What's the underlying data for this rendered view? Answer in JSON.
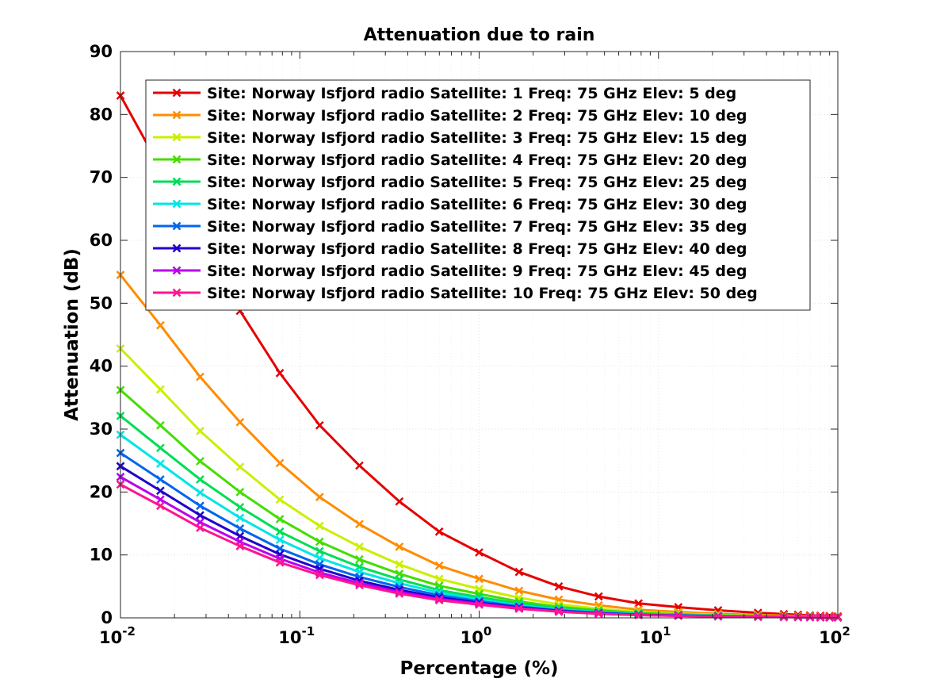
{
  "chart_data": {
    "type": "line",
    "title": "Attenuation due to rain",
    "xlabel": "Percentage (%)",
    "ylabel": "Attenuation (dB)",
    "xscale": "log",
    "xlim": [
      0.01,
      100
    ],
    "ylim": [
      0,
      90
    ],
    "x_ticks": [
      0.01,
      0.1,
      1,
      10,
      100
    ],
    "x_tick_labels": [
      {
        "base": "10",
        "exp": "-2"
      },
      {
        "base": "10",
        "exp": "-1"
      },
      {
        "base": "10",
        "exp": "0"
      },
      {
        "base": "10",
        "exp": "1"
      },
      {
        "base": "10",
        "exp": "2"
      }
    ],
    "y_ticks": [
      0,
      10,
      20,
      30,
      40,
      50,
      60,
      70,
      80,
      90
    ],
    "y_tick_labels": [
      "0",
      "10",
      "20",
      "30",
      "40",
      "50",
      "60",
      "70",
      "80",
      "90"
    ],
    "grid": true,
    "legend_position": "top-right",
    "marker": "x",
    "x": [
      0.01,
      0.0167,
      0.0278,
      0.0464,
      0.0774,
      0.129,
      0.215,
      0.359,
      0.599,
      1.0,
      1.67,
      2.78,
      4.64,
      7.74,
      12.9,
      21.5,
      35.9,
      50,
      60,
      70,
      80,
      90,
      100
    ],
    "series": [
      {
        "name": "Site: Norway Isfjord radio Satellite: 1 Freq: 75 GHz Elev: 5 deg",
        "color": "#e60000",
        "values": [
          83,
          71.5,
          59.5,
          48.8,
          38.9,
          30.6,
          24.2,
          18.5,
          13.7,
          10.4,
          7.3,
          5.0,
          3.4,
          2.3,
          1.7,
          1.2,
          0.8,
          0.6,
          0.5,
          0.4,
          0.35,
          0.3,
          0.25
        ]
      },
      {
        "name": "Site: Norway Isfjord radio Satellite: 2 Freq: 75 GHz Elev: 10 deg",
        "color": "#ff8c00",
        "values": [
          54.5,
          46.5,
          38.3,
          31.1,
          24.6,
          19.2,
          14.9,
          11.3,
          8.3,
          6.2,
          4.3,
          2.9,
          2.0,
          1.3,
          0.95,
          0.65,
          0.45,
          0.35,
          0.3,
          0.25,
          0.2,
          0.18,
          0.15
        ]
      },
      {
        "name": "Site: Norway Isfjord radio Satellite: 3 Freq: 75 GHz Elev: 15 deg",
        "color": "#ccee00",
        "values": [
          42.8,
          36.3,
          29.7,
          24.0,
          18.8,
          14.6,
          11.3,
          8.5,
          6.2,
          4.6,
          3.2,
          2.15,
          1.45,
          0.95,
          0.7,
          0.48,
          0.33,
          0.26,
          0.22,
          0.18,
          0.15,
          0.13,
          0.11
        ]
      },
      {
        "name": "Site: Norway Isfjord radio Satellite: 4 Freq: 75 GHz Elev: 20 deg",
        "color": "#44dd00",
        "values": [
          36.2,
          30.6,
          24.9,
          20.0,
          15.7,
          12.1,
          9.3,
          7.0,
          5.1,
          3.8,
          2.6,
          1.75,
          1.2,
          0.78,
          0.57,
          0.39,
          0.27,
          0.21,
          0.18,
          0.15,
          0.13,
          0.11,
          0.09
        ]
      },
      {
        "name": "Site: Norway Isfjord radio Satellite: 5 Freq: 75 GHz Elev: 25 deg",
        "color": "#00dd55",
        "values": [
          32.1,
          27.0,
          22.0,
          17.6,
          13.7,
          10.6,
          8.1,
          6.1,
          4.4,
          3.3,
          2.25,
          1.5,
          1.0,
          0.67,
          0.49,
          0.34,
          0.23,
          0.18,
          0.15,
          0.13,
          0.11,
          0.09,
          0.08
        ]
      },
      {
        "name": "Site: Norway Isfjord radio Satellite: 6 Freq: 75 GHz Elev: 30 deg",
        "color": "#00e5e5",
        "values": [
          29.1,
          24.5,
          19.9,
          15.9,
          12.4,
          9.5,
          7.3,
          5.5,
          4.0,
          2.95,
          2.0,
          1.35,
          0.9,
          0.6,
          0.44,
          0.3,
          0.21,
          0.16,
          0.14,
          0.12,
          0.1,
          0.08,
          0.07
        ]
      },
      {
        "name": "Site: Norway Isfjord radio Satellite: 7 Freq: 75 GHz Elev: 35 deg",
        "color": "#0066ee",
        "values": [
          26.2,
          22.0,
          17.8,
          14.2,
          11.0,
          8.5,
          6.5,
          4.9,
          3.6,
          2.65,
          1.8,
          1.2,
          0.8,
          0.54,
          0.39,
          0.27,
          0.19,
          0.15,
          0.13,
          0.11,
          0.09,
          0.08,
          0.07
        ]
      },
      {
        "name": "Site: Norway Isfjord radio Satellite: 8 Freq: 75 GHz Elev: 40 deg",
        "color": "#2200cc",
        "values": [
          24.1,
          20.2,
          16.3,
          13.0,
          10.1,
          7.8,
          5.9,
          4.45,
          3.25,
          2.4,
          1.65,
          1.1,
          0.73,
          0.49,
          0.36,
          0.25,
          0.17,
          0.14,
          0.12,
          0.1,
          0.08,
          0.07,
          0.06
        ]
      },
      {
        "name": "Site: Norway Isfjord radio Satellite: 9 Freq: 75 GHz Elev: 45 deg",
        "color": "#bb00ee",
        "values": [
          22.4,
          18.8,
          15.2,
          12.1,
          9.4,
          7.2,
          5.5,
          4.1,
          3.0,
          2.25,
          1.55,
          1.03,
          0.68,
          0.46,
          0.33,
          0.23,
          0.16,
          0.13,
          0.11,
          0.09,
          0.08,
          0.07,
          0.06
        ]
      },
      {
        "name": "Site: Norway Isfjord radio Satellite: 10 Freq: 75 GHz Elev: 50 deg",
        "color": "#ff1493",
        "values": [
          21.2,
          17.8,
          14.3,
          11.4,
          8.8,
          6.8,
          5.2,
          3.85,
          2.8,
          2.1,
          1.45,
          0.97,
          0.64,
          0.43,
          0.31,
          0.22,
          0.15,
          0.12,
          0.1,
          0.09,
          0.07,
          0.06,
          0.05
        ]
      }
    ]
  }
}
